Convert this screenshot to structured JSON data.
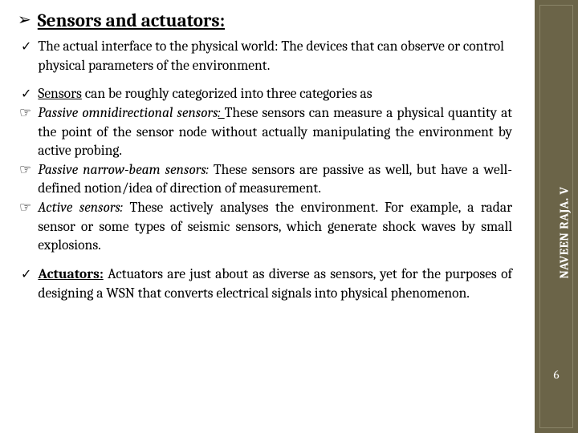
{
  "title": "Sensors and actuators:",
  "intro": "The actual interface to the physical world: The devices that can observe or control physical parameters of the environment.",
  "sensors_intro_prefix": "Sensors",
  "sensors_intro_rest": " can be roughly categorized into three categories as",
  "cat1_label": "Passive omnidirectional sensors",
  "cat1_sep": ": ",
  "cat1_text": "These sensors can measure a physical quantity at the point of the sensor node without actually manipulating the environment by active probing.",
  "cat2_label": "Passive narrow-beam sensors:",
  "cat2_text": " These sensors are passive as well, but have a well-defined notion/idea of direction of measurement.",
  "cat3_label": "Active sensors:",
  "cat3_text": " These actively analyses the environment. For example, a radar sensor or some types of seismic sensors, which generate shock waves by small explosions.",
  "actuators_label": "Actuators:",
  "actuators_text": " Actuators are just about as diverse as sensors, yet for the purposes of designing a WSN that converts electrical signals into physical phenomenon.",
  "author": "NAVEEN RAJA. V",
  "page": "6",
  "colors": {
    "sidebar_bg": "#6b6448",
    "sidebar_border": "#8a8468",
    "text": "#000000",
    "sidebar_text": "#ffffff",
    "background": "#ffffff"
  },
  "glyphs": {
    "arrow": "➢",
    "check": "✓",
    "hand": "☞"
  }
}
